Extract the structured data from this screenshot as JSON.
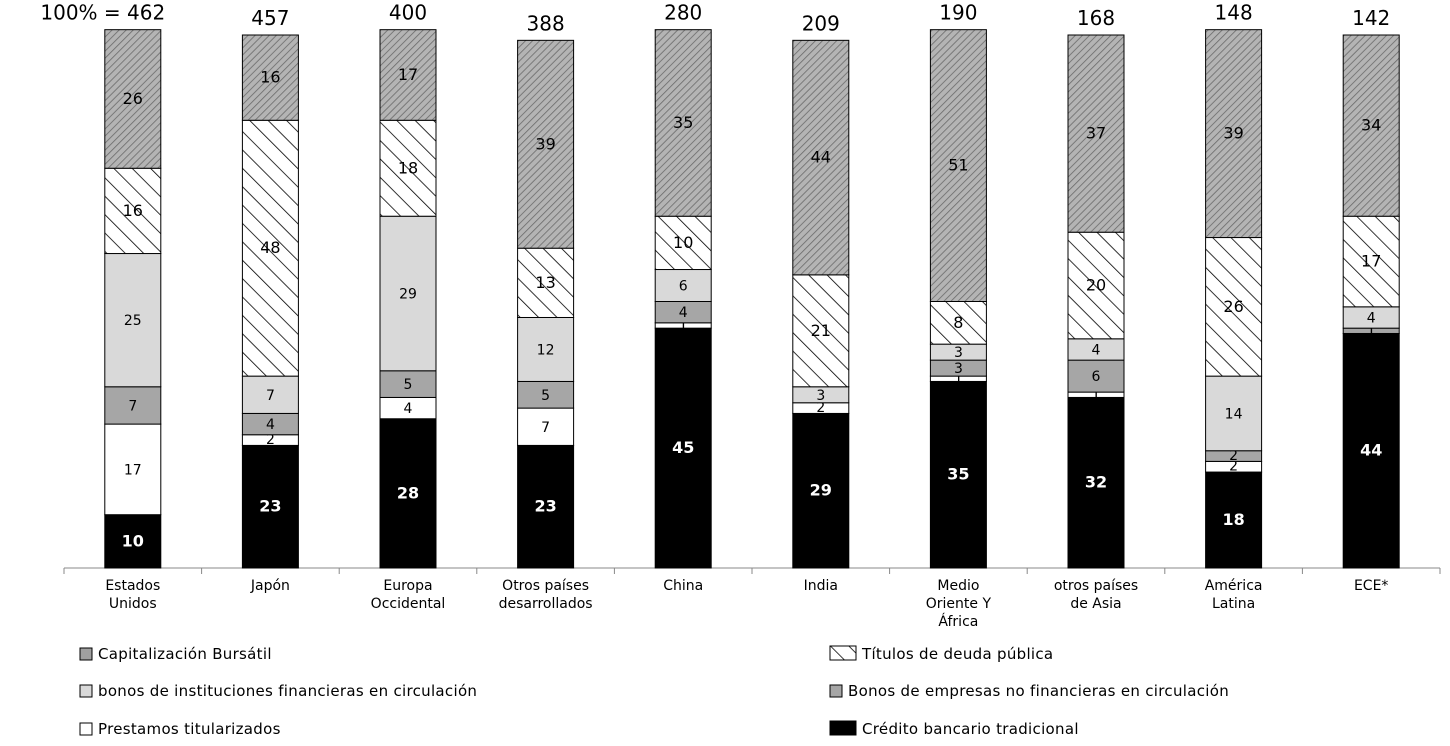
{
  "chart_data": {
    "type": "bar",
    "stacked": true,
    "normalized": true,
    "total_prefix": "100% = ",
    "categories": [
      [
        "Estados",
        "Unidos"
      ],
      [
        "Japón"
      ],
      [
        "Europa",
        "Occidental"
      ],
      [
        "Otros países",
        "desarrollados"
      ],
      [
        "China"
      ],
      [
        "India"
      ],
      [
        "Medio",
        "Oriente Y",
        "África"
      ],
      [
        "otros países",
        "de Asia"
      ],
      [
        "América",
        "Latina"
      ],
      [
        "ECE*"
      ]
    ],
    "totals": [
      "462",
      "457",
      "400",
      "388",
      "280",
      "209",
      "190",
      "168",
      "148",
      "142"
    ],
    "series": [
      {
        "name": "Crédito bancario tradicional",
        "key": "credito",
        "values": [
          10,
          23,
          28,
          23,
          45,
          29,
          35,
          32,
          18,
          44
        ]
      },
      {
        "name": "Prestamos titularizados",
        "key": "prestamos",
        "values": [
          17,
          2,
          4,
          7,
          1,
          2,
          1,
          1,
          2,
          0
        ]
      },
      {
        "name": "Bonos de empresas no financieras en circulación",
        "key": "bonos_empresas",
        "values": [
          7,
          4,
          5,
          5,
          4,
          0,
          3,
          6,
          2,
          1
        ]
      },
      {
        "name": "bonos de instituciones financieras en circulación",
        "key": "bonos_inst",
        "values": [
          25,
          7,
          29,
          12,
          6,
          3,
          3,
          4,
          14,
          4
        ]
      },
      {
        "name": "Títulos de deuda pública",
        "key": "titulos",
        "values": [
          16,
          48,
          18,
          13,
          10,
          21,
          8,
          20,
          26,
          17
        ]
      },
      {
        "name": "Capitalización Bursátil",
        "key": "capitalizacion",
        "values": [
          26,
          16,
          17,
          39,
          35,
          44,
          51,
          37,
          39,
          34
        ]
      }
    ],
    "legend_order": [
      "capitalizacion",
      "titulos",
      "bonos_inst",
      "bonos_empresas",
      "prestamos",
      "credito"
    ],
    "legend_placement": "bottom",
    "colors": {
      "credito": "#000000",
      "prestamos": "#ffffff",
      "bonos_empresas": "#a6a6a6",
      "bonos_inst": "#d9d9d9",
      "titulos": "#ffffff",
      "capitalizacion": "#a0a0a0"
    },
    "grid": false
  }
}
